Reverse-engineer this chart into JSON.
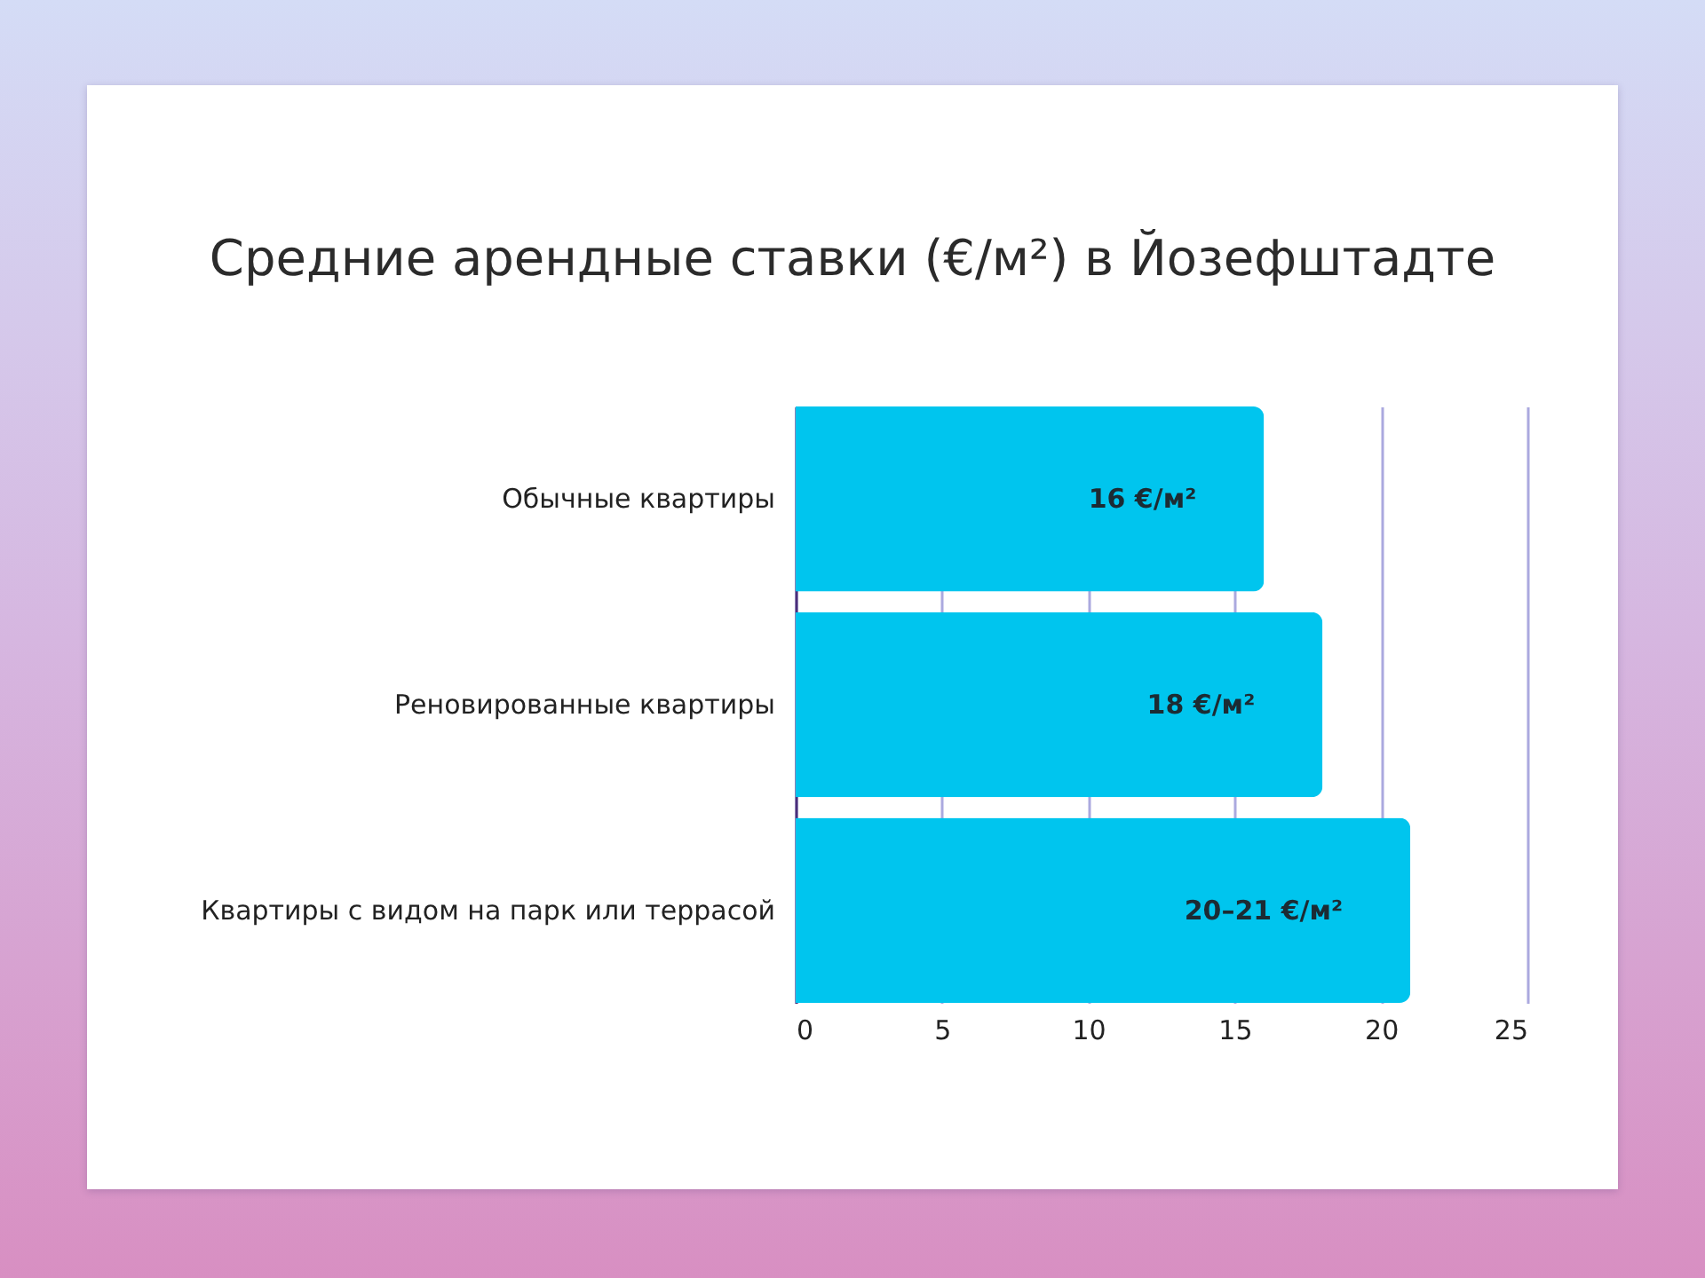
{
  "chart_data": {
    "type": "bar",
    "orientation": "horizontal",
    "title": "Средние арендные ставки (€/м²) в Йозефштадте",
    "categories": [
      "Обычные квартиры",
      "Реновированные квартиры",
      "Квартиры с видом на парк или террасой"
    ],
    "values": [
      16,
      18,
      21
    ],
    "value_labels": [
      "16 €/м²",
      "18 €/м²",
      "20–21 €/м²"
    ],
    "color": "#00c5ee",
    "xlim": [
      0,
      25
    ],
    "xticks": [
      0,
      5,
      10,
      15,
      20,
      25
    ],
    "grid": "x"
  }
}
